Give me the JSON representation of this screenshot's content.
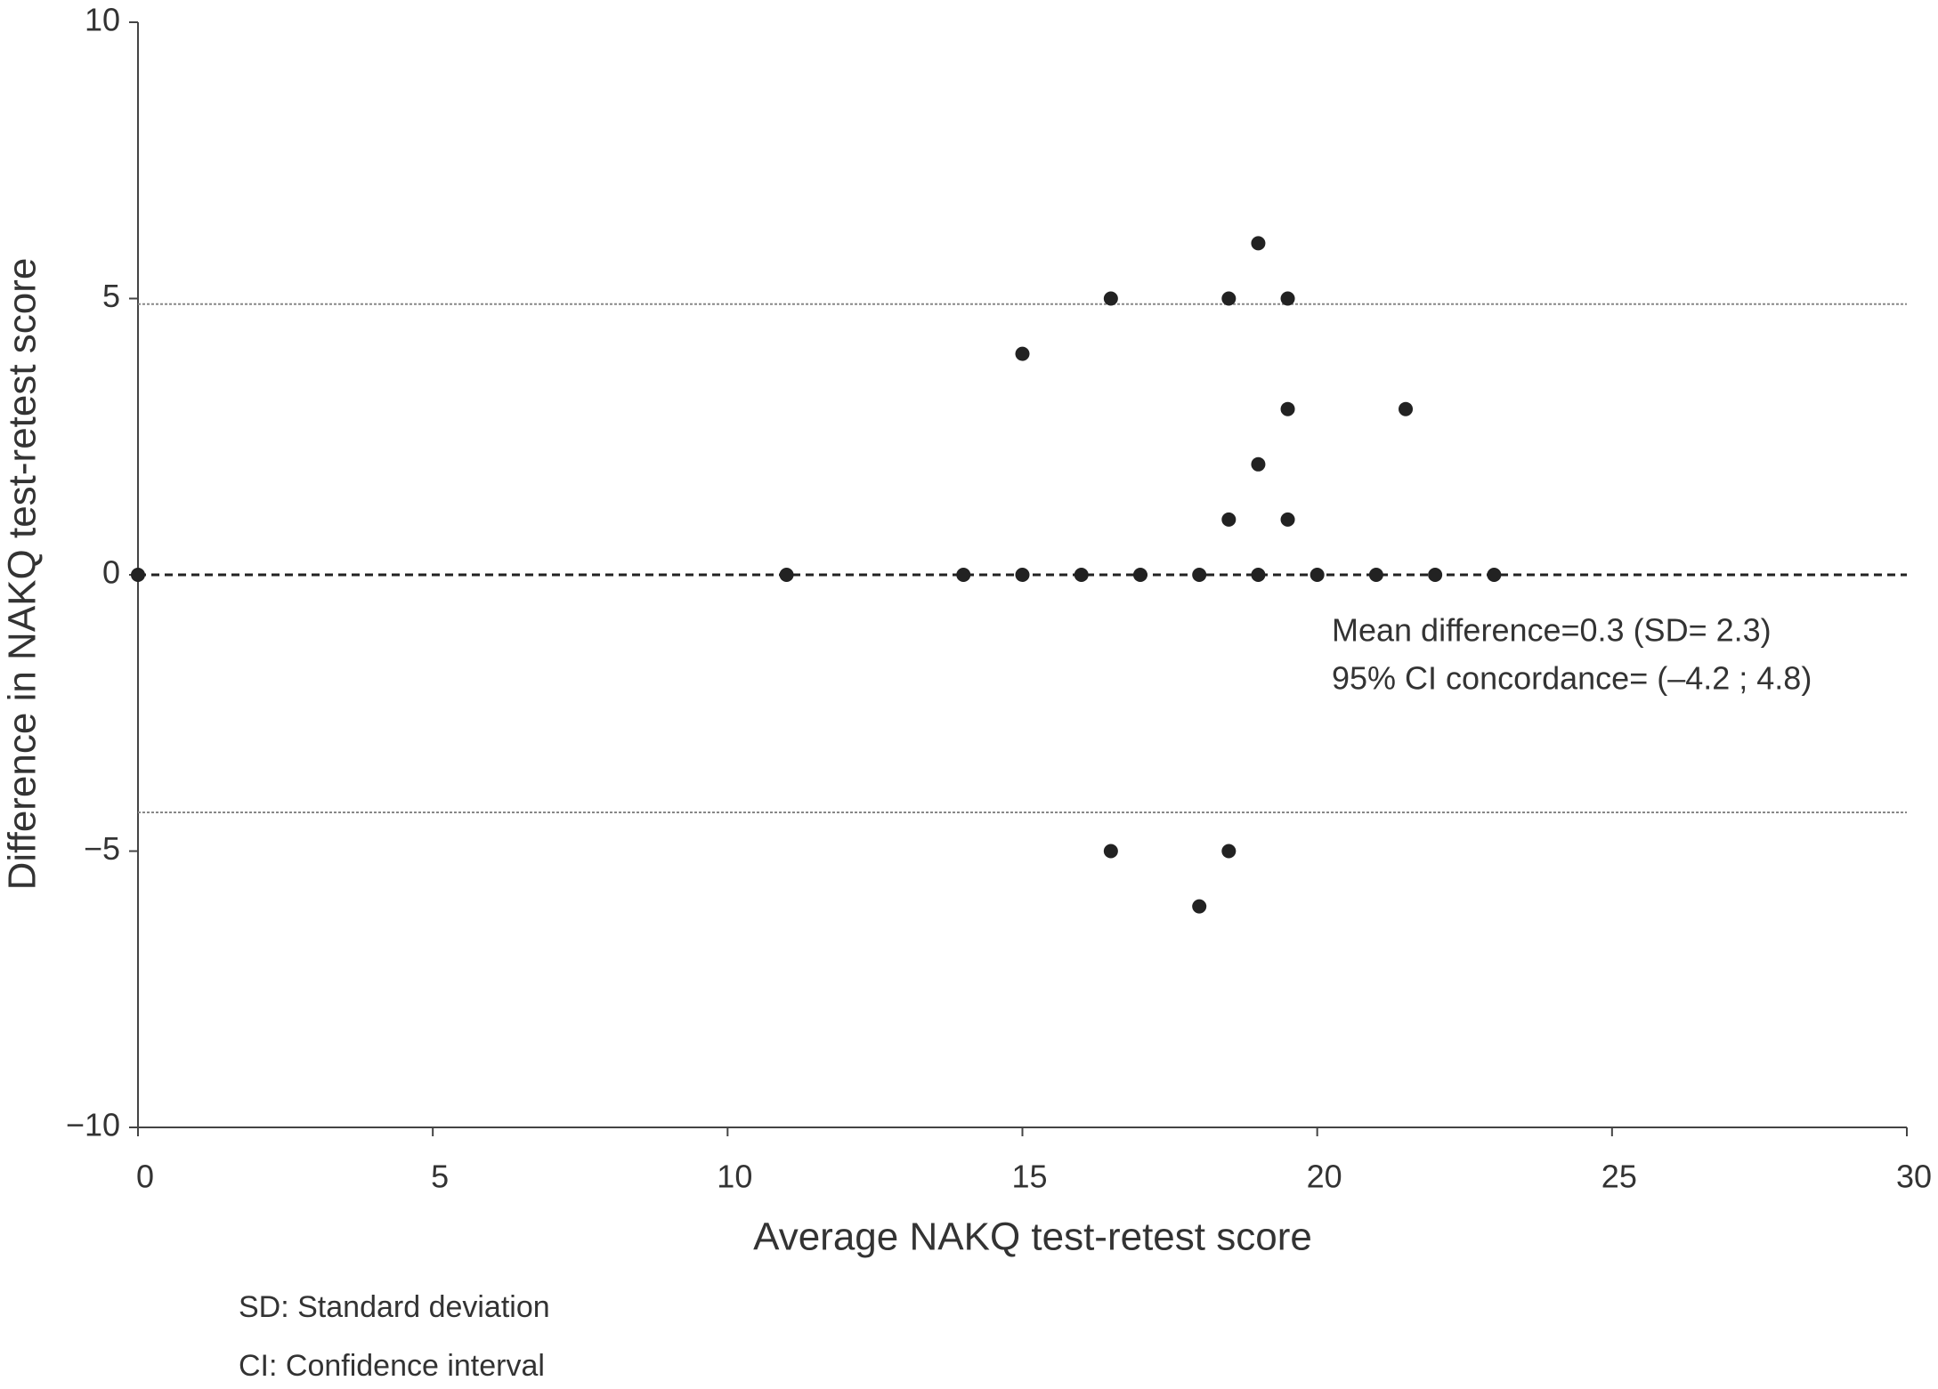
{
  "chart_data": {
    "type": "scatter",
    "x": [
      0,
      11,
      14,
      15,
      16,
      17,
      18,
      19,
      20,
      21,
      22,
      23,
      15,
      16.5,
      18.5,
      19,
      19.5,
      19.5,
      21.5,
      19,
      18.5,
      19.5,
      16.5,
      18.5,
      18
    ],
    "values": [
      0,
      0,
      0,
      0,
      0,
      0,
      0,
      0,
      0,
      0,
      0,
      0,
      4,
      5,
      5,
      6,
      5,
      3,
      3,
      2,
      1,
      1,
      -5,
      -5,
      -6
    ],
    "color": "#222222",
    "xlabel": "Average NAKQ test-retest score",
    "ylabel": "Difference in NAKQ test-retest score",
    "xlim": [
      0,
      30
    ],
    "xticks": [
      0,
      5,
      10,
      15,
      20,
      25,
      30
    ],
    "ylim": [
      -10,
      10
    ],
    "yticks": [
      {
        "value": -10,
        "label": "−10"
      },
      {
        "value": -5,
        "label": "−5"
      },
      0,
      5,
      10
    ],
    "reference_lines": [
      {
        "value": 4.9,
        "style": "dotted",
        "color": "#888888"
      },
      {
        "value": 0,
        "style": "dashed",
        "color": "#222222"
      },
      {
        "value": -4.3,
        "style": "dotted",
        "color": "#888888"
      }
    ],
    "annotations": [
      "Mean difference=0.3 (SD= 2.3)",
      "95% CI concordance= (–4.2 ;  4.8)"
    ],
    "footnotes": [
      "SD: Standard deviation",
      "CI: Confidence interval"
    ]
  }
}
